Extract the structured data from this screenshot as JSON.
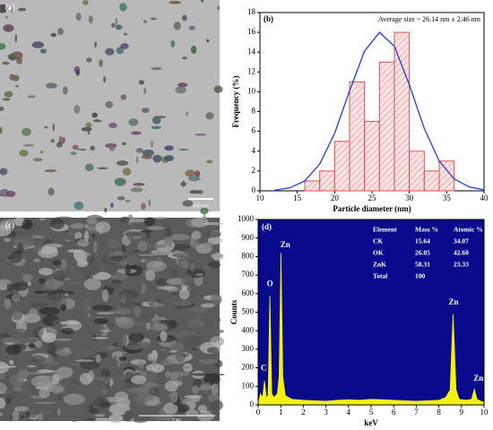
{
  "images": [
    {
      "label": "(a)",
      "scale_bar": "100 nm"
    },
    {
      "label": "(c)",
      "scale_bar": "1 um"
    }
  ],
  "chart_data": [
    {
      "type": "histogram",
      "label": "(b)",
      "annotation": "Average size ~ 26.14 nm ± 2.46 nm",
      "x_label": "Particle diameter (nm)",
      "y_label": "Frequency (%)",
      "bins": [
        16,
        18,
        20,
        22,
        24,
        26,
        28,
        30,
        32,
        34,
        36
      ],
      "values": [
        1,
        2,
        5,
        11,
        7,
        13,
        16,
        4,
        2,
        3
      ],
      "color": "#d9534f",
      "fit": {
        "color": "#1f3fd6",
        "x": [
          12,
          14,
          16,
          18,
          20,
          22,
          24,
          26,
          28,
          30,
          32,
          34,
          36,
          38,
          40
        ],
        "values": [
          0.07,
          0.3,
          1.0,
          2.7,
          5.8,
          10.1,
          14.1,
          16.0,
          14.6,
          10.7,
          6.3,
          3.0,
          1.2,
          0.4,
          0.1
        ]
      },
      "xlim": [
        10,
        40
      ],
      "xticks": [
        10,
        15,
        20,
        25,
        30,
        35,
        40
      ],
      "ylim": [
        0,
        18
      ],
      "yticks": [
        0,
        2,
        4,
        6,
        8,
        10,
        12,
        14,
        16,
        18
      ]
    },
    {
      "type": "area",
      "label": "(d)",
      "x_label": "keV",
      "y_label": "Counts",
      "color": "#f2f20a",
      "background": "#0a0a8c",
      "x": [
        0,
        0.1,
        0.2,
        0.28,
        0.36,
        0.44,
        0.52,
        0.6,
        0.7,
        0.85,
        0.93,
        1.01,
        1.09,
        1.2,
        1.5,
        2,
        2.5,
        3,
        3.5,
        4,
        4.5,
        5,
        5.5,
        6,
        6.5,
        7,
        7.5,
        8,
        8.3,
        8.5,
        8.63,
        8.76,
        8.9,
        9.2,
        9.45,
        9.57,
        9.69,
        9.85,
        10
      ],
      "values": [
        0,
        60,
        40,
        130,
        40,
        50,
        590,
        60,
        40,
        60,
        150,
        820,
        150,
        50,
        30,
        25,
        22,
        20,
        25,
        28,
        25,
        30,
        28,
        25,
        22,
        20,
        22,
        25,
        40,
        80,
        490,
        80,
        30,
        25,
        30,
        85,
        30,
        20,
        15
      ],
      "peak_labels": [
        "C",
        "O",
        "Zn",
        "Zn",
        "Zn"
      ],
      "table": {
        "header": [
          "Element",
          "Mass %",
          "Atomic %"
        ],
        "rows": [
          [
            "CK",
            "15.64",
            "34.07"
          ],
          [
            "OK",
            "26.05",
            "42.60"
          ],
          [
            "ZnK",
            "58.31",
            "23.33"
          ],
          [
            "Total",
            "100"
          ]
        ]
      },
      "xlim": [
        0,
        10
      ],
      "xticks": [
        0,
        1,
        2,
        3,
        4,
        5,
        6,
        7,
        8,
        9,
        10
      ],
      "ylim": [
        0,
        1000
      ],
      "yticks": [
        0,
        100,
        200,
        300,
        400,
        500,
        600,
        700,
        800,
        900,
        1000
      ]
    }
  ]
}
